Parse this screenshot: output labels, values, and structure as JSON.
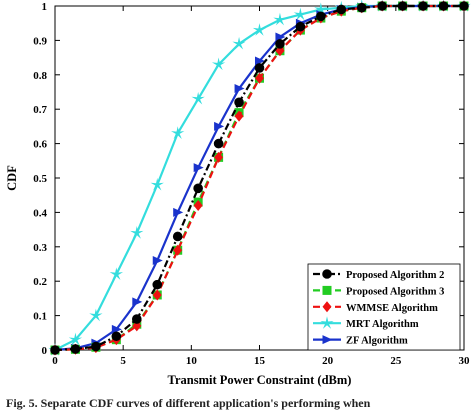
{
  "chart_data": {
    "type": "line",
    "xlabel": "Transmit Power Constraint (dBm)",
    "ylabel": "CDF",
    "xlim": [
      0,
      30
    ],
    "ylim": [
      0,
      1
    ],
    "xticks": [
      0,
      5,
      10,
      15,
      20,
      25,
      30
    ],
    "yticks": [
      0,
      0.1,
      0.2,
      0.3,
      0.4,
      0.5,
      0.6,
      0.7,
      0.8,
      0.9,
      1
    ],
    "grid": false,
    "legend_position": "bottom-right",
    "series": [
      {
        "name": "Proposed Algorithm 2",
        "color": "#000000",
        "dash": "dash-dot",
        "marker": "circle",
        "x": [
          0,
          1.5,
          3,
          4.5,
          6,
          7.5,
          9,
          10.5,
          12,
          13.5,
          15,
          16.5,
          18,
          19.5,
          21,
          22.5,
          24,
          25.5,
          27,
          28.5,
          30
        ],
        "y": [
          0,
          0.003,
          0.01,
          0.04,
          0.09,
          0.19,
          0.33,
          0.47,
          0.6,
          0.72,
          0.82,
          0.89,
          0.94,
          0.97,
          0.99,
          0.995,
          1,
          1,
          1,
          1,
          1
        ]
      },
      {
        "name": "Proposed Algorithm 3",
        "color": "#22cc22",
        "dash": "dashed",
        "marker": "square",
        "x": [
          0,
          1.5,
          3,
          4.5,
          6,
          7.5,
          9,
          10.5,
          12,
          13.5,
          15,
          16.5,
          18,
          19.5,
          21,
          22.5,
          24,
          25.5,
          27,
          28.5,
          30
        ],
        "y": [
          0,
          0.002,
          0.008,
          0.03,
          0.075,
          0.16,
          0.29,
          0.43,
          0.56,
          0.69,
          0.79,
          0.87,
          0.93,
          0.965,
          0.985,
          0.995,
          1,
          1,
          1,
          1,
          1
        ]
      },
      {
        "name": "WMMSE Algorithm",
        "color": "#ee1111",
        "dash": "dashed",
        "marker": "diamond",
        "x": [
          0,
          1.5,
          3,
          4.5,
          6,
          7.5,
          9,
          10.5,
          12,
          13.5,
          15,
          16.5,
          18,
          19.5,
          21,
          22.5,
          24,
          25.5,
          27,
          28.5,
          30
        ],
        "y": [
          0,
          0.002,
          0.007,
          0.03,
          0.07,
          0.16,
          0.29,
          0.42,
          0.56,
          0.68,
          0.79,
          0.87,
          0.93,
          0.965,
          0.985,
          0.995,
          1,
          1,
          1,
          1,
          1
        ]
      },
      {
        "name": "MRT Algorithm",
        "color": "#33dddd",
        "dash": "solid",
        "marker": "star",
        "x": [
          0,
          1.5,
          3,
          4.5,
          6,
          7.5,
          9,
          10.5,
          12,
          13.5,
          15,
          16.5,
          18,
          19.5,
          21,
          22.5,
          24,
          25.5,
          27,
          28.5,
          30
        ],
        "y": [
          0,
          0.03,
          0.1,
          0.22,
          0.34,
          0.48,
          0.63,
          0.73,
          0.83,
          0.89,
          0.93,
          0.96,
          0.975,
          0.99,
          0.995,
          1,
          1,
          1,
          1,
          1,
          1
        ]
      },
      {
        "name": "ZF Algorithm",
        "color": "#1a33cc",
        "dash": "solid",
        "marker": "triangle-right",
        "x": [
          0,
          1.5,
          3,
          4.5,
          6,
          7.5,
          9,
          10.5,
          12,
          13.5,
          15,
          16.5,
          18,
          19.5,
          21,
          22.5,
          24,
          25.5,
          27,
          28.5,
          30
        ],
        "y": [
          0,
          0.005,
          0.02,
          0.06,
          0.14,
          0.26,
          0.4,
          0.53,
          0.65,
          0.76,
          0.84,
          0.91,
          0.95,
          0.975,
          0.99,
          0.997,
          1,
          1,
          1,
          1,
          1
        ]
      }
    ]
  },
  "caption": "Fig. 5. Separate CDF curves of different application's performing when"
}
